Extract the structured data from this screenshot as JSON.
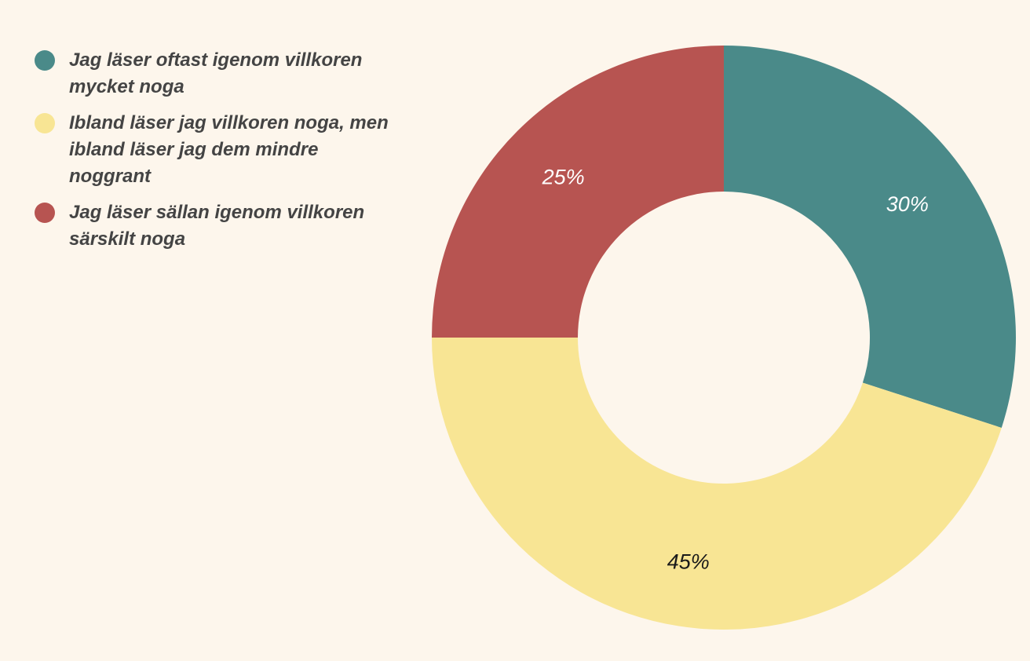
{
  "chart_data": {
    "type": "pie",
    "donut": true,
    "title": "",
    "categories": [
      "Jag läser oftast igenom villkoren mycket noga",
      "Ibland läser jag villkoren noga, men ibland läser jag dem mindre noggrant",
      "Jag läser sällan igenom villkoren särskilt noga"
    ],
    "values": [
      30,
      45,
      25
    ],
    "labels": [
      "30%",
      "45%",
      "25%"
    ],
    "colors": [
      "#4a8a89",
      "#f8e594",
      "#b75451"
    ],
    "label_colors": [
      "#ffffff",
      "#1a1a1a",
      "#ffffff"
    ],
    "legend": "left",
    "background": "#fdf6ec"
  }
}
